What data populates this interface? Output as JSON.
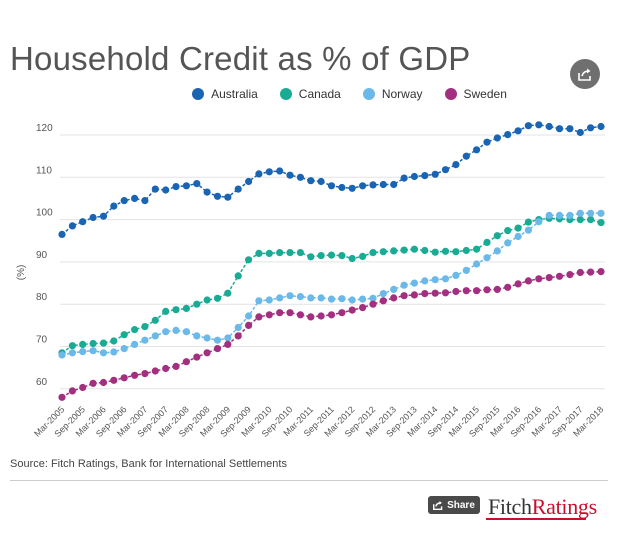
{
  "header": {
    "title": "Household Credit as % of GDP",
    "share_icon": "share-icon"
  },
  "footer": {
    "source": "Source: Fitch Ratings, Bank for International Settlements",
    "share_label": "Share",
    "brand_part1": "Fitch",
    "brand_part2": "Ratings"
  },
  "chart_data": {
    "type": "line",
    "title": "Household Credit as % of GDP",
    "ylabel": "(%)",
    "xlabel": "",
    "ylim": [
      55,
      125
    ],
    "yticks": [
      60,
      70,
      80,
      90,
      100,
      110,
      120
    ],
    "grid": "horizontal",
    "legend_position": "top",
    "x": [
      "Mar-2005",
      "Jun-2005",
      "Sep-2005",
      "Dec-2005",
      "Mar-2006",
      "Jun-2006",
      "Sep-2006",
      "Dec-2006",
      "Mar-2007",
      "Jun-2007",
      "Sep-2007",
      "Dec-2007",
      "Mar-2008",
      "Jun-2008",
      "Sep-2008",
      "Dec-2008",
      "Mar-2009",
      "Jun-2009",
      "Sep-2009",
      "Dec-2009",
      "Mar-2010",
      "Jun-2010",
      "Sep-2010",
      "Dec-2010",
      "Mar-2011",
      "Jun-2011",
      "Sep-2011",
      "Dec-2011",
      "Mar-2012",
      "Jun-2012",
      "Sep-2012",
      "Dec-2012",
      "Mar-2013",
      "Jun-2013",
      "Sep-2013",
      "Dec-2013",
      "Mar-2014",
      "Jun-2014",
      "Sep-2014",
      "Dec-2014",
      "Mar-2015",
      "Jun-2015",
      "Sep-2015",
      "Dec-2015",
      "Mar-2016",
      "Jun-2016",
      "Sep-2016",
      "Dec-2016",
      "Mar-2017",
      "Jun-2017",
      "Sep-2017",
      "Dec-2017",
      "Mar-2018"
    ],
    "xtick_labels": [
      "Mar-2005",
      "Sep-2005",
      "Mar-2006",
      "Sep-2006",
      "Mar-2007",
      "Sep-2007",
      "Mar-2008",
      "Sep-2008",
      "Mar-2009",
      "Sep-2009",
      "Mar-2010",
      "Sep-2010",
      "Mar-2011",
      "Sep-2011",
      "Mar-2012",
      "Sep-2012",
      "Mar-2013",
      "Sep-2013",
      "Mar-2014",
      "Sep-2014",
      "Mar-2015",
      "Sep-2015",
      "Mar-2016",
      "Sep-2016",
      "Mar-2017",
      "Sep-2017",
      "Mar-2018"
    ],
    "series": [
      {
        "name": "Australia",
        "color": "#1a64b4",
        "values": [
          96.5,
          98.5,
          99.5,
          100.5,
          100.8,
          103.2,
          104.5,
          105,
          104.5,
          107.2,
          107,
          107.8,
          108,
          108.5,
          106.5,
          105.5,
          105.3,
          107.2,
          109,
          110.8,
          111.3,
          111.5,
          110.5,
          110,
          109.2,
          109,
          108,
          107.6,
          107.4,
          108,
          108.2,
          108.3,
          108.3,
          109.8,
          110.2,
          110.4,
          110.7,
          111.8,
          113,
          115,
          116.5,
          118.3,
          119.3,
          120.1,
          121,
          122.2,
          122.4,
          122,
          121.5,
          121.5,
          120.6,
          121.7,
          122
        ]
      },
      {
        "name": "Canada",
        "color": "#1aab95",
        "values": [
          68.5,
          70.2,
          70.5,
          70.7,
          70.8,
          71.3,
          72.8,
          74,
          74.7,
          76.2,
          78.3,
          78.7,
          79,
          80,
          81,
          81.4,
          82.6,
          86.7,
          90.5,
          92,
          92,
          92.2,
          92.2,
          92.2,
          91.2,
          91.5,
          91.6,
          91.5,
          90.8,
          91.3,
          92.2,
          92.4,
          92.6,
          92.8,
          93,
          92.7,
          92.3,
          92.5,
          92.4,
          92.7,
          93,
          94.6,
          96.2,
          97.4,
          98,
          99.4,
          100,
          100.3,
          100.2,
          100,
          100,
          100,
          99.3
        ]
      },
      {
        "name": "Norway",
        "color": "#6ab9e8",
        "values": [
          68,
          68.5,
          68.8,
          69,
          68.5,
          68.7,
          69.5,
          70.5,
          71.5,
          72.5,
          73.5,
          73.8,
          73.5,
          72.5,
          72,
          71.5,
          72,
          74.5,
          77.2,
          80.8,
          81,
          81.5,
          82,
          81.8,
          81.5,
          81.5,
          81.2,
          81.3,
          81,
          81.2,
          81.4,
          82.5,
          83.5,
          84.5,
          85,
          85.5,
          85.8,
          86,
          86.8,
          88,
          89.5,
          91,
          92.6,
          94.5,
          96,
          97.5,
          99.5,
          101,
          101,
          101,
          101.5,
          101.5,
          101.5
        ]
      },
      {
        "name": "Sweden",
        "color": "#a32f80",
        "values": [
          58,
          59.5,
          60.3,
          61.3,
          61.5,
          62,
          62.6,
          63.2,
          63.6,
          64.2,
          64.8,
          65.3,
          66.4,
          67.5,
          68.5,
          69.5,
          70.5,
          72.5,
          75,
          77,
          77.5,
          78,
          78,
          77.5,
          77,
          77.2,
          77.5,
          78,
          78.6,
          79.2,
          80,
          80.8,
          81.5,
          82,
          82.2,
          82.5,
          82.6,
          82.7,
          83,
          83.2,
          83.2,
          83.4,
          83.5,
          84,
          84.8,
          85.5,
          86,
          86.3,
          86.6,
          87,
          87.5,
          87.6,
          87.7
        ]
      }
    ]
  }
}
